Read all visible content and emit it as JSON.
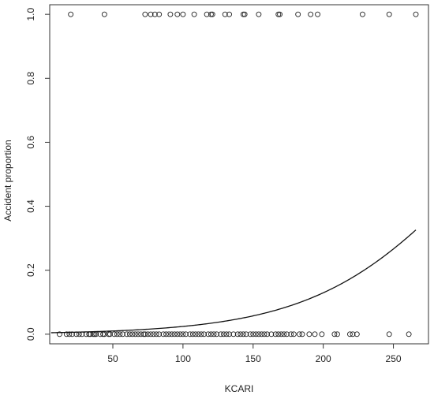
{
  "chart_data": {
    "type": "scatter",
    "title": "",
    "xlabel": "KCARI",
    "ylabel": "Accident proportion",
    "xlim": [
      5,
      275
    ],
    "ylim": [
      -0.03,
      1.03
    ],
    "xticks": [
      50,
      100,
      150,
      200,
      250
    ],
    "yticks": [
      0.0,
      0.2,
      0.4,
      0.6,
      0.8,
      1.0
    ],
    "xtick_labels": [
      "50",
      "100",
      "150",
      "200",
      "250"
    ],
    "ytick_labels": [
      "0.0",
      "0.2",
      "0.4",
      "0.6",
      "0.8",
      "1.0"
    ],
    "grid": false,
    "series": [
      {
        "marker": "open-circle",
        "color": "#222222",
        "points_y1": [
          20,
          44,
          73,
          77,
          80,
          83,
          91,
          96,
          100,
          108,
          117,
          120,
          121,
          130,
          133,
          143,
          144,
          154,
          168,
          169,
          182,
          191,
          196,
          228,
          247,
          266
        ],
        "points_y0": [
          12,
          17,
          19,
          21,
          24,
          26,
          28,
          31,
          33,
          34,
          36,
          37,
          38,
          41,
          43,
          44,
          47,
          48,
          51,
          53,
          55,
          57,
          60,
          62,
          64,
          66,
          68,
          70,
          72,
          73,
          75,
          77,
          79,
          81,
          83,
          86,
          88,
          90,
          92,
          94,
          96,
          98,
          100,
          102,
          105,
          107,
          109,
          111,
          113,
          115,
          118,
          120,
          122,
          124,
          127,
          129,
          131,
          133,
          136,
          139,
          141,
          143,
          145,
          148,
          150,
          152,
          154,
          156,
          158,
          160,
          163,
          166,
          168,
          170,
          172,
          174,
          177,
          179,
          183,
          185,
          190,
          194,
          199,
          208,
          210,
          219,
          221,
          224,
          247,
          261
        ]
      },
      {
        "type": "line",
        "color": "#111111",
        "logistic": {
          "intercept": -5.48,
          "slope": 0.01787
        },
        "x_range": [
          6,
          266
        ]
      }
    ]
  }
}
